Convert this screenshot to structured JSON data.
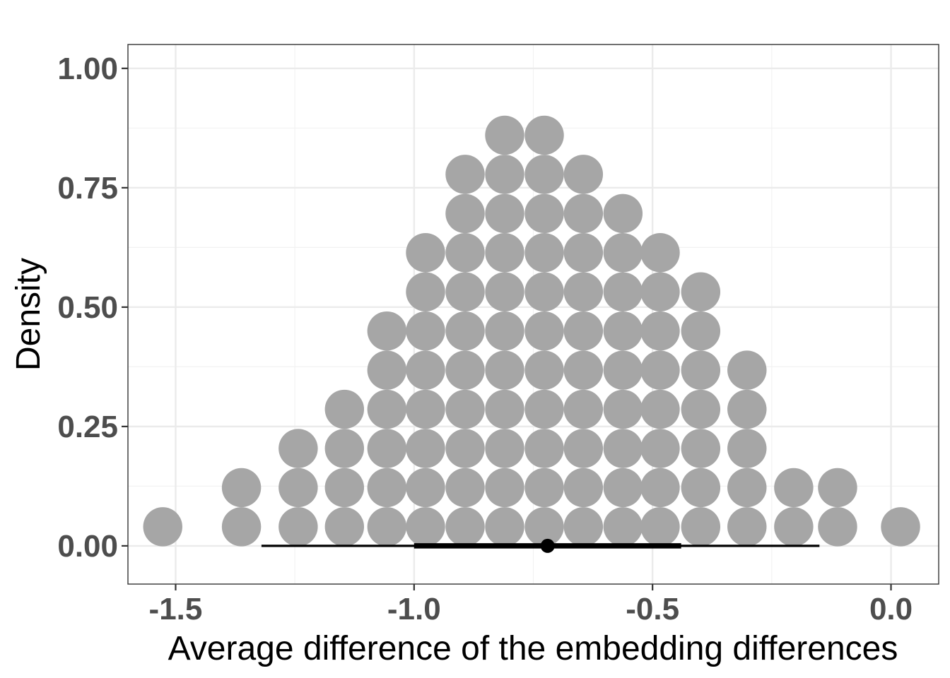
{
  "chart_data": {
    "type": "dotplot",
    "xlabel": "Average difference of the embedding differences",
    "ylabel": "Density",
    "xlim": [
      -1.6,
      0.1
    ],
    "ylim": [
      -0.08,
      1.05
    ],
    "x_ticks": [
      -1.5,
      -1.0,
      -0.5,
      0.0
    ],
    "x_tick_labels": [
      "-1.5",
      "-1.0",
      "-0.5",
      "0.0"
    ],
    "y_ticks": [
      0.0,
      0.25,
      0.5,
      0.75,
      1.0
    ],
    "y_tick_labels": [
      "0.00",
      "0.25",
      "0.50",
      "0.75",
      "1.00"
    ],
    "grid": true,
    "dot_color": "#a6a6a6",
    "stack_step": 0.082,
    "first_stack_center": 0.04,
    "stacks": [
      {
        "x": -1.527,
        "count": 1
      },
      {
        "x": -1.362,
        "count": 2
      },
      {
        "x": -1.243,
        "count": 3
      },
      {
        "x": -1.146,
        "count": 4
      },
      {
        "x": -1.057,
        "count": 6
      },
      {
        "x": -0.976,
        "count": 8
      },
      {
        "x": -0.893,
        "count": 10
      },
      {
        "x": -0.81,
        "count": 11
      },
      {
        "x": -0.727,
        "count": 11
      },
      {
        "x": -0.645,
        "count": 10
      },
      {
        "x": -0.562,
        "count": 9
      },
      {
        "x": -0.484,
        "count": 8
      },
      {
        "x": -0.399,
        "count": 7
      },
      {
        "x": -0.302,
        "count": 5
      },
      {
        "x": -0.204,
        "count": 2
      },
      {
        "x": -0.112,
        "count": 2
      },
      {
        "x": 0.02,
        "count": 1
      }
    ],
    "interval": {
      "point": -0.72,
      "outer": [
        -1.32,
        -0.15
      ],
      "inner": [
        -1.0,
        -0.44
      ],
      "y": 0.0
    }
  }
}
